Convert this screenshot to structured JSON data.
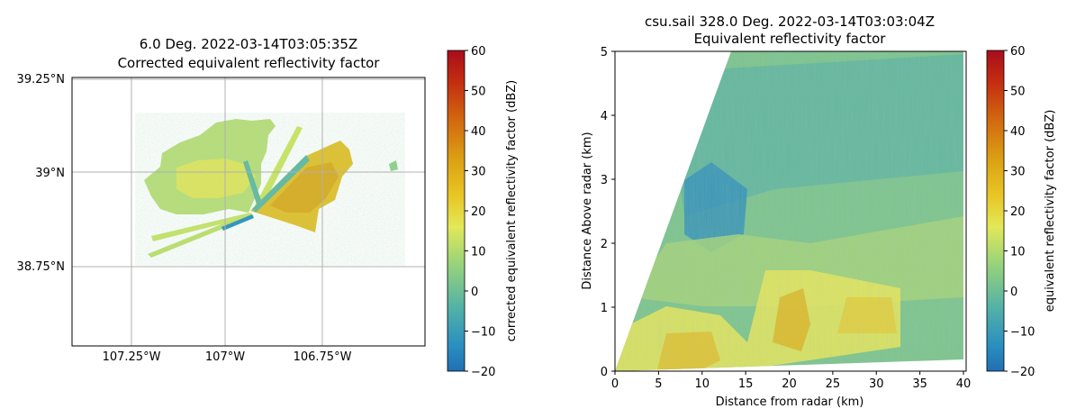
{
  "chart_data": [
    {
      "type": "heatmap",
      "panel": "left",
      "title_line1": "6.0 Deg. 2022-03-14T03:05:35Z",
      "title_line2": "Corrected equivalent reflectivity factor",
      "x_ticks": [
        "107.25°W",
        "107°W",
        "106.75°W"
      ],
      "y_ticks": [
        "39.25°N",
        "39°N",
        "38.75°N"
      ],
      "grid": true,
      "colorbar": {
        "label": "corrected equivalent reflectivity factor (dBZ)",
        "range": [
          -20,
          60
        ],
        "ticks": [
          -20,
          -10,
          0,
          10,
          20,
          30,
          40,
          50,
          60
        ]
      },
      "features": [
        {
          "region": "western cluster",
          "approx_dbz": 15
        },
        {
          "region": "eastern sector",
          "approx_dbz": 25
        }
      ]
    },
    {
      "type": "heatmap",
      "panel": "right",
      "title_line1": "csu.sail 328.0 Deg. 2022-03-14T03:03:04Z",
      "title_line2": "Equivalent reflectivity factor",
      "xlabel": "Distance from radar (km)",
      "ylabel": "Distance Above radar  (km)",
      "xlim": [
        0,
        40
      ],
      "ylim": [
        0,
        5
      ],
      "x_ticks": [
        0,
        5,
        10,
        15,
        20,
        25,
        30,
        35,
        40
      ],
      "y_ticks": [
        0,
        1,
        2,
        3,
        4,
        5
      ],
      "colorbar": {
        "label": "equivalent reflectivity factor (dBZ)",
        "range": [
          -20,
          60
        ],
        "ticks": [
          -20,
          -10,
          0,
          10,
          20,
          30,
          40,
          50,
          60
        ]
      },
      "features": [
        {
          "region": "low levels 0-14 km",
          "approx_dbz": 20
        },
        {
          "region": "0-1.5 km height, 15-33 km",
          "approx_dbz": 22
        },
        {
          "region": "upper levels",
          "approx_dbz": 3
        },
        {
          "region": "2-3 km height, 5-15 km",
          "approx_dbz": -8
        }
      ]
    }
  ]
}
